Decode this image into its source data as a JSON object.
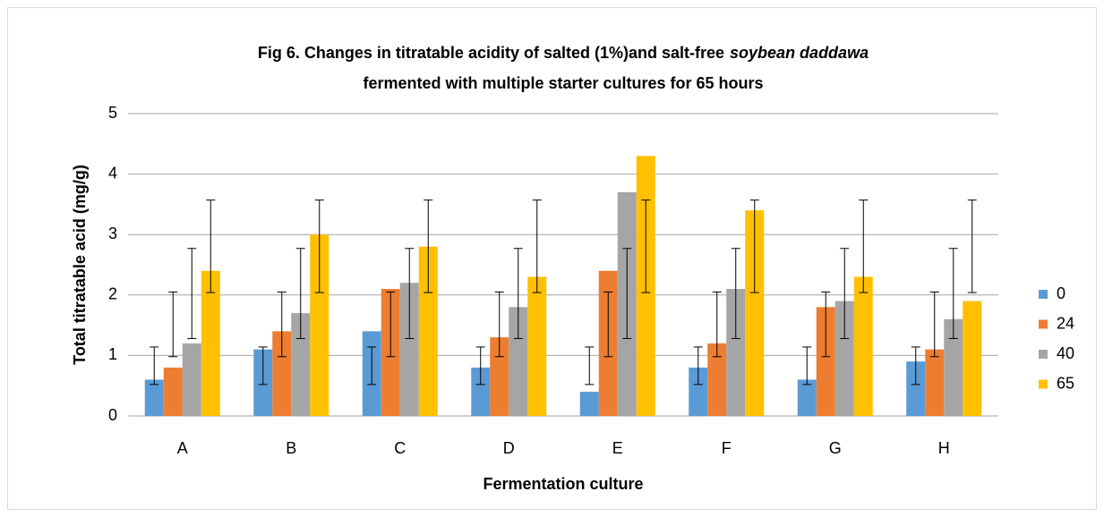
{
  "chart_data": {
    "type": "bar",
    "title": [
      "Fig 6. Changes in titratable acidity of salted (1%)and salt-free",
      "soybean daddawa",
      "fermented  with  multiple starter cultures for 65 hours"
    ],
    "x_label": "Fermentation culture",
    "y_label": "Total titratable acid (mg/g)",
    "categories": [
      "A",
      "B",
      "C",
      "D",
      "E",
      "F",
      "G",
      "H"
    ],
    "series": [
      {
        "name": "0",
        "color": "#5b9bd5",
        "values": [
          0.6,
          1.1,
          1.4,
          0.8,
          0.4,
          0.8,
          0.6,
          0.9
        ],
        "error_low": [
          0.52,
          0.52,
          0.52,
          0.52,
          0.52,
          0.52,
          0.52,
          0.52
        ],
        "error_high": [
          1.14,
          1.14,
          1.14,
          1.14,
          1.14,
          1.14,
          1.14,
          1.14
        ]
      },
      {
        "name": "24",
        "color": "#ed7d31",
        "values": [
          0.8,
          1.4,
          2.1,
          1.3,
          2.4,
          1.2,
          1.8,
          1.1
        ],
        "error_low": [
          0.98,
          0.98,
          0.98,
          0.98,
          0.98,
          0.98,
          0.98,
          0.98
        ],
        "error_high": [
          2.05,
          2.05,
          2.05,
          2.05,
          2.05,
          2.05,
          2.05,
          2.05
        ]
      },
      {
        "name": "40",
        "color": "#a5a5a5",
        "values": [
          1.2,
          1.7,
          2.2,
          1.8,
          3.7,
          2.1,
          1.9,
          1.6
        ],
        "error_low": [
          1.28,
          1.28,
          1.28,
          1.28,
          1.28,
          1.28,
          1.28,
          1.28
        ],
        "error_high": [
          2.77,
          2.77,
          2.77,
          2.77,
          2.77,
          2.77,
          2.77,
          2.77
        ]
      },
      {
        "name": "65",
        "color": "#ffc000",
        "values": [
          2.4,
          3.0,
          2.8,
          2.3,
          4.3,
          3.4,
          2.3,
          1.9
        ],
        "error_low": [
          2.04,
          2.04,
          2.04,
          2.04,
          2.04,
          2.04,
          2.04,
          2.04
        ],
        "error_high": [
          3.57,
          3.57,
          3.57,
          3.57,
          3.57,
          3.57,
          3.57,
          3.57
        ]
      }
    ],
    "ylim": [
      0,
      5
    ],
    "yticks": [
      0,
      1,
      2,
      3,
      4,
      5
    ],
    "grid": true,
    "legend": "right"
  }
}
